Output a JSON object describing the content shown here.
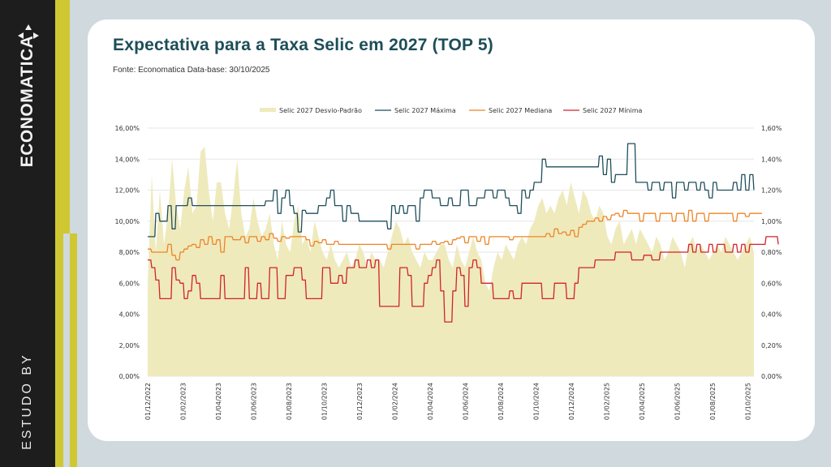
{
  "branding": {
    "logo_text": "ECONOMATICA",
    "study_label": "ESTUDO BY"
  },
  "header": {
    "title": "Expectativa para a Taxa Selic em 2027 (TOP 5)",
    "source": "Fonte: Economatica Data-base: 30/10/2025"
  },
  "colors": {
    "brand_yellow": "#cfc832",
    "brand_dark": "#1d1d1d",
    "title": "#1d4e58",
    "maxima": "#1f4e5c",
    "mediana": "#ee8426",
    "minima": "#d2232a",
    "desvio": "#eeeabc"
  },
  "chart_data": {
    "type": "line",
    "title": "Expectativa para a Taxa Selic em 2027 (TOP 5)",
    "xlabel": "",
    "ylabel": "",
    "y_left": {
      "min": 0,
      "max": 16,
      "ticks": [
        "0,00%",
        "2,00%",
        "4,00%",
        "6,00%",
        "8,00%",
        "10,00%",
        "12,00%",
        "14,00%",
        "16,00%"
      ]
    },
    "y_right": {
      "min": 0,
      "max": 1.6,
      "ticks": [
        "0,00%",
        "0,20%",
        "0,40%",
        "0,60%",
        "0,80%",
        "1,00%",
        "1,20%",
        "1,40%",
        "1,60%"
      ]
    },
    "x_range": [
      "2022-12-01",
      "2025-10-30"
    ],
    "x_ticks": [
      "01/12/2022",
      "01/02/2023",
      "01/04/2023",
      "01/06/2023",
      "01/08/2023",
      "01/10/2023",
      "01/12/2023",
      "01/02/2024",
      "01/04/2024",
      "01/06/2024",
      "01/08/2024",
      "01/10/2024",
      "01/12/2024",
      "01/02/2025",
      "01/04/2025",
      "01/06/2025",
      "01/08/2025",
      "01/10/2025"
    ],
    "grid": true,
    "legend_position": "top-center",
    "sampling": "approx. weekly from 01/12/2022 to 30/10/2025",
    "series": [
      {
        "name": "Selic 2027 Desvio-Padrão",
        "kind": "area",
        "axis": "right",
        "values": [
          0.6,
          1.3,
          0.8,
          1.2,
          0.85,
          1.05,
          1.4,
          1.1,
          0.95,
          1.2,
          1.35,
          1.05,
          1.1,
          1.45,
          1.48,
          1.2,
          1.0,
          1.25,
          1.25,
          1.05,
          0.95,
          1.15,
          1.4,
          1.05,
          0.9,
          0.95,
          1.15,
          1.0,
          0.9,
          0.95,
          1.05,
          0.85,
          0.75,
          1.0,
          0.85,
          0.8,
          1.0,
          1.1,
          0.85,
          0.9,
          0.8,
          1.0,
          0.9,
          0.8,
          0.75,
          0.85,
          0.75,
          0.7,
          0.75,
          0.8,
          0.7,
          0.75,
          0.85,
          0.8,
          0.7,
          0.8,
          0.75,
          0.75,
          0.7,
          0.8,
          0.9,
          1.0,
          0.95,
          0.85,
          0.9,
          0.8,
          0.75,
          0.7,
          0.8,
          0.75,
          0.75,
          0.8,
          0.85,
          0.85,
          0.75,
          0.7,
          0.85,
          0.75,
          0.7,
          0.8,
          0.9,
          0.8,
          0.75,
          0.6,
          0.55,
          0.7,
          0.8,
          0.75,
          0.85,
          0.8,
          0.75,
          0.85,
          0.9,
          0.85,
          0.95,
          1.0,
          1.1,
          1.15,
          1.05,
          1.1,
          1.05,
          1.15,
          1.2,
          1.1,
          1.25,
          1.15,
          1.05,
          1.2,
          1.15,
          1.05,
          1.0,
          1.1,
          1.05,
          0.9,
          0.85,
          0.95,
          1.0,
          0.85,
          0.9,
          0.95,
          0.85,
          0.95,
          0.9,
          0.85,
          0.8,
          0.9,
          0.85,
          0.75,
          0.8,
          0.9,
          0.85,
          0.8,
          0.7,
          0.85,
          0.9,
          0.8,
          0.85,
          0.8,
          0.75,
          0.8,
          0.85,
          0.8,
          0.9,
          0.85,
          0.8,
          0.75,
          0.8,
          0.85,
          0.9,
          0.8
        ]
      },
      {
        "name": "Selic 2027 Máxima",
        "kind": "line",
        "axis": "left",
        "values": [
          9.0,
          9.0,
          10.5,
          10.0,
          10.0,
          11.0,
          9.5,
          11.0,
          11.0,
          11.0,
          11.5,
          11.0,
          11.0,
          11.0,
          11.0,
          11.0,
          11.0,
          11.0,
          11.0,
          11.0,
          11.0,
          11.0,
          11.0,
          11.0,
          11.0,
          11.0,
          11.0,
          11.0,
          11.0,
          11.3,
          11.3,
          12.0,
          10.5,
          11.5,
          12.0,
          11.0,
          10.5,
          9.3,
          10.7,
          10.5,
          10.5,
          10.5,
          11.0,
          11.0,
          11.5,
          12.0,
          11.0,
          11.0,
          10.0,
          11.0,
          10.5,
          10.5,
          10.0,
          10.0,
          10.0,
          10.0,
          10.0,
          10.0,
          10.0,
          9.5,
          11.0,
          10.5,
          11.0,
          10.5,
          11.0,
          11.0,
          10.0,
          11.5,
          12.0,
          12.0,
          11.5,
          11.5,
          11.0,
          11.0,
          11.5,
          11.0,
          11.0,
          12.0,
          12.0,
          11.0,
          11.0,
          11.5,
          11.5,
          12.0,
          12.0,
          11.5,
          12.0,
          12.0,
          11.5,
          11.0,
          11.0,
          10.5,
          12.0,
          11.5,
          12.0,
          12.5,
          12.5,
          14.0,
          13.5,
          13.5,
          13.5,
          13.5,
          13.5,
          13.5,
          13.5,
          13.5,
          13.5,
          13.5,
          13.5,
          13.5,
          13.5,
          14.2,
          13.0,
          14.0,
          12.5,
          13.0,
          13.0,
          13.0,
          15.0,
          15.0,
          12.5,
          12.5,
          12.5,
          12.0,
          12.5,
          12.5,
          12.0,
          12.5,
          12.5,
          11.5,
          12.5,
          12.5,
          12.0,
          12.5,
          12.5,
          12.0,
          12.5,
          12.0,
          11.5,
          12.5,
          12.0,
          12.0,
          12.0,
          12.0,
          12.5,
          12.0,
          13.0,
          12.0,
          13.0,
          12.0
        ]
      },
      {
        "name": "Selic 2027 Mediana",
        "kind": "line",
        "axis": "left",
        "values": [
          8.2,
          8.0,
          8.0,
          8.0,
          8.0,
          8.5,
          7.8,
          7.5,
          8.0,
          8.2,
          8.4,
          8.5,
          8.3,
          8.8,
          8.5,
          9.0,
          8.5,
          8.8,
          8.0,
          9.0,
          9.0,
          8.8,
          8.8,
          9.0,
          8.6,
          9.0,
          9.0,
          8.7,
          9.0,
          8.8,
          9.2,
          8.9,
          8.7,
          9.0,
          8.9,
          9.0,
          9.0,
          9.0,
          9.0,
          8.8,
          8.4,
          8.7,
          8.6,
          8.8,
          8.5,
          8.5,
          8.7,
          8.5,
          8.5,
          8.5,
          8.5,
          8.5,
          8.5,
          8.5,
          8.5,
          8.5,
          8.5,
          8.5,
          8.5,
          8.2,
          8.5,
          8.5,
          8.5,
          8.5,
          8.5,
          8.5,
          8.2,
          8.5,
          8.5,
          8.5,
          8.7,
          8.5,
          8.6,
          8.7,
          8.5,
          8.8,
          8.9,
          9.0,
          8.6,
          9.0,
          9.0,
          8.7,
          9.0,
          8.5,
          9.0,
          9.0,
          9.0,
          9.0,
          9.0,
          8.8,
          9.0,
          9.0,
          9.0,
          9.0,
          9.0,
          9.0,
          9.0,
          9.0,
          9.2,
          9.0,
          9.5,
          9.2,
          9.3,
          9.1,
          9.4,
          9.0,
          9.6,
          9.8,
          10.0,
          10.0,
          10.2,
          10.0,
          10.3,
          10.1,
          10.4,
          10.5,
          10.3,
          10.7,
          10.5,
          10.5,
          10.5,
          10.0,
          10.5,
          10.5,
          10.5,
          10.0,
          10.5,
          10.5,
          10.5,
          10.0,
          10.5,
          10.5,
          10.0,
          10.7,
          10.0,
          10.5,
          10.5,
          10.0,
          10.5,
          10.5,
          10.5,
          10.5,
          10.5,
          10.5,
          10.0,
          10.5,
          10.5,
          10.3,
          10.5,
          10.5,
          10.5,
          10.5
        ]
      },
      {
        "name": "Selic 2027 Mínima",
        "kind": "line",
        "axis": "left",
        "values": [
          7.5,
          7.0,
          6.2,
          5.0,
          5.0,
          5.0,
          7.0,
          6.2,
          6.0,
          5.0,
          5.5,
          6.5,
          6.0,
          5.0,
          5.0,
          5.0,
          5.0,
          5.0,
          6.5,
          5.0,
          5.0,
          5.0,
          5.0,
          5.0,
          7.0,
          5.0,
          5.0,
          6.0,
          5.0,
          5.0,
          7.0,
          7.0,
          5.0,
          5.0,
          6.5,
          6.5,
          7.0,
          7.0,
          6.2,
          5.0,
          5.0,
          5.0,
          5.0,
          7.0,
          7.0,
          6.0,
          6.0,
          6.5,
          6.0,
          7.0,
          7.0,
          7.5,
          7.0,
          7.0,
          7.5,
          7.0,
          7.5,
          4.5,
          4.5,
          4.5,
          4.5,
          4.5,
          7.0,
          7.0,
          6.5,
          4.5,
          4.5,
          4.5,
          6.0,
          6.5,
          7.0,
          7.5,
          5.5,
          3.5,
          3.5,
          5.5,
          7.0,
          6.5,
          4.5,
          7.0,
          7.5,
          7.0,
          6.0,
          6.0,
          6.0,
          5.0,
          5.0,
          5.0,
          5.0,
          5.5,
          5.0,
          5.0,
          6.0,
          6.0,
          6.0,
          6.0,
          6.0,
          5.0,
          5.0,
          5.0,
          6.0,
          6.0,
          6.0,
          5.0,
          5.0,
          6.0,
          7.0,
          7.0,
          7.0,
          7.0,
          7.5,
          7.5,
          7.5,
          7.5,
          7.5,
          8.0,
          8.0,
          8.0,
          8.0,
          7.5,
          7.5,
          7.5,
          7.8,
          7.8,
          7.5,
          7.5,
          8.0,
          8.0,
          8.0,
          8.0,
          8.0,
          8.0,
          8.0,
          8.5,
          8.0,
          8.5,
          8.0,
          8.0,
          8.5,
          8.0,
          8.5,
          8.5,
          8.0,
          8.0,
          8.5,
          8.0,
          8.5,
          8.0,
          8.5,
          8.5,
          8.5,
          8.5,
          9.0,
          9.0,
          9.0,
          8.5
        ]
      }
    ]
  }
}
